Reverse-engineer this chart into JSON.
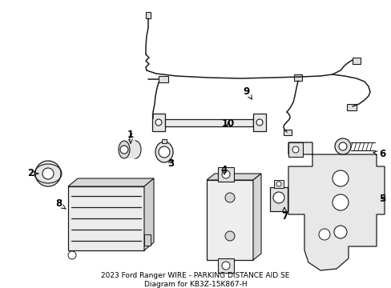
{
  "title": "2023 Ford Ranger WIRE - PARKING DISTANCE AID SE\nDiagram for KB3Z-15K867-H",
  "background_color": "#ffffff",
  "line_color": "#1a1a1a",
  "text_color": "#000000",
  "label_fontsize": 8.5,
  "title_fontsize": 6.5,
  "figsize": [
    4.89,
    3.6
  ],
  "dpi": 100,
  "xlim": [
    0,
    489
  ],
  "ylim": [
    0,
    360
  ]
}
